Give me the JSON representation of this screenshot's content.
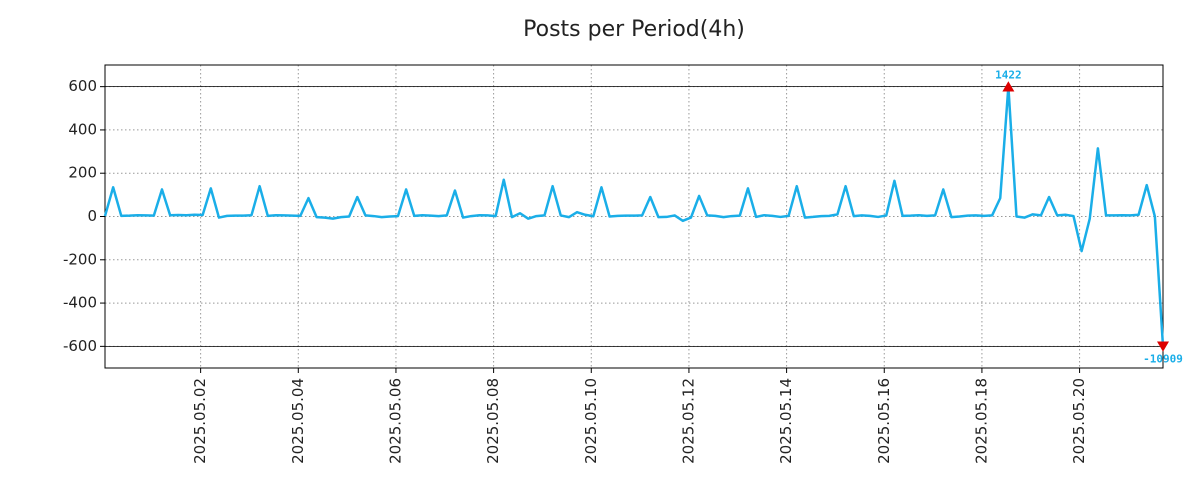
{
  "chart_data": {
    "type": "line",
    "title": "Posts per Period(4h)",
    "x": [
      "2025-04-30T01:00",
      "2025-04-30T05:00",
      "2025-04-30T09:00",
      "2025-04-30T13:00",
      "2025-04-30T17:00",
      "2025-04-30T21:00",
      "2025-05-01T01:00",
      "2025-05-01T05:00",
      "2025-05-01T09:00",
      "2025-05-01T13:00",
      "2025-05-01T17:00",
      "2025-05-01T21:00",
      "2025-05-02T01:00",
      "2025-05-02T05:00",
      "2025-05-02T09:00",
      "2025-05-02T13:00",
      "2025-05-02T17:00",
      "2025-05-02T21:00",
      "2025-05-03T01:00",
      "2025-05-03T05:00",
      "2025-05-03T09:00",
      "2025-05-03T13:00",
      "2025-05-03T17:00",
      "2025-05-03T21:00",
      "2025-05-04T01:00",
      "2025-05-04T05:00",
      "2025-05-04T09:00",
      "2025-05-04T13:00",
      "2025-05-04T17:00",
      "2025-05-04T21:00",
      "2025-05-05T01:00",
      "2025-05-05T05:00",
      "2025-05-05T09:00",
      "2025-05-05T13:00",
      "2025-05-05T17:00",
      "2025-05-05T21:00",
      "2025-05-06T01:00",
      "2025-05-06T05:00",
      "2025-05-06T09:00",
      "2025-05-06T13:00",
      "2025-05-06T17:00",
      "2025-05-06T21:00",
      "2025-05-07T01:00",
      "2025-05-07T05:00",
      "2025-05-07T09:00",
      "2025-05-07T13:00",
      "2025-05-07T17:00",
      "2025-05-07T21:00",
      "2025-05-08T01:00",
      "2025-05-08T05:00",
      "2025-05-08T09:00",
      "2025-05-08T13:00",
      "2025-05-08T17:00",
      "2025-05-08T21:00",
      "2025-05-09T01:00",
      "2025-05-09T05:00",
      "2025-05-09T09:00",
      "2025-05-09T13:00",
      "2025-05-09T17:00",
      "2025-05-09T21:00",
      "2025-05-10T01:00",
      "2025-05-10T05:00",
      "2025-05-10T09:00",
      "2025-05-10T13:00",
      "2025-05-10T17:00",
      "2025-05-10T21:00",
      "2025-05-11T01:00",
      "2025-05-11T05:00",
      "2025-05-11T09:00",
      "2025-05-11T13:00",
      "2025-05-11T17:00",
      "2025-05-11T21:00",
      "2025-05-12T01:00",
      "2025-05-12T05:00",
      "2025-05-12T09:00",
      "2025-05-12T13:00",
      "2025-05-12T17:00",
      "2025-05-12T21:00",
      "2025-05-13T01:00",
      "2025-05-13T05:00",
      "2025-05-13T09:00",
      "2025-05-13T13:00",
      "2025-05-13T17:00",
      "2025-05-13T21:00",
      "2025-05-14T01:00",
      "2025-05-14T05:00",
      "2025-05-14T09:00",
      "2025-05-14T13:00",
      "2025-05-14T17:00",
      "2025-05-14T21:00",
      "2025-05-15T01:00",
      "2025-05-15T05:00",
      "2025-05-15T09:00",
      "2025-05-15T13:00",
      "2025-05-15T17:00",
      "2025-05-15T21:00",
      "2025-05-16T01:00",
      "2025-05-16T05:00",
      "2025-05-16T09:00",
      "2025-05-16T13:00",
      "2025-05-16T17:00",
      "2025-05-16T21:00",
      "2025-05-17T01:00",
      "2025-05-17T05:00",
      "2025-05-17T09:00",
      "2025-05-17T13:00",
      "2025-05-17T17:00",
      "2025-05-17T21:00",
      "2025-05-18T01:00",
      "2025-05-18T05:00",
      "2025-05-18T09:00",
      "2025-05-18T13:00",
      "2025-05-18T17:00",
      "2025-05-18T21:00",
      "2025-05-19T01:00",
      "2025-05-19T05:00",
      "2025-05-19T09:00",
      "2025-05-19T13:00",
      "2025-05-19T17:00",
      "2025-05-19T21:00",
      "2025-05-20T01:00",
      "2025-05-20T05:00",
      "2025-05-20T09:00",
      "2025-05-20T13:00",
      "2025-05-20T17:00",
      "2025-05-20T21:00",
      "2025-05-21T01:00",
      "2025-05-21T05:00",
      "2025-05-21T09:00",
      "2025-05-21T13:00",
      "2025-05-21T17:00"
    ],
    "values": [
      2,
      135,
      3,
      4,
      6,
      5,
      4,
      125,
      6,
      7,
      6,
      8,
      7,
      130,
      -5,
      3,
      4,
      4,
      6,
      140,
      3,
      6,
      5,
      4,
      3,
      85,
      -3,
      -5,
      -10,
      -3,
      0,
      90,
      5,
      2,
      -3,
      0,
      2,
      125,
      3,
      6,
      4,
      2,
      5,
      120,
      -5,
      2,
      6,
      5,
      2,
      170,
      -3,
      15,
      -10,
      2,
      5,
      140,
      5,
      -3,
      20,
      8,
      1,
      135,
      0,
      3,
      4,
      4,
      5,
      90,
      -3,
      -2,
      5,
      -20,
      -5,
      95,
      5,
      3,
      -3,
      2,
      4,
      130,
      -2,
      6,
      3,
      -2,
      3,
      140,
      -5,
      -2,
      2,
      3,
      10,
      140,
      2,
      5,
      3,
      -2,
      5,
      165,
      3,
      4,
      6,
      3,
      5,
      125,
      -3,
      0,
      4,
      5,
      3,
      5,
      85,
      600,
      0,
      -5,
      10,
      5,
      90,
      5,
      8,
      2,
      -160,
      -10,
      315,
      5,
      5,
      6,
      5,
      8,
      145,
      0,
      -600
    ],
    "color": "#1aaee8",
    "xlim": [
      "2025-04-30T01:00",
      "2025-05-21T17:00"
    ],
    "xticks": [
      {
        "value": "2025-05-02T00:00",
        "label": "2025.05.02"
      },
      {
        "value": "2025-05-04T00:00",
        "label": "2025.05.04"
      },
      {
        "value": "2025-05-06T00:00",
        "label": "2025.05.06"
      },
      {
        "value": "2025-05-08T00:00",
        "label": "2025.05.08"
      },
      {
        "value": "2025-05-10T00:00",
        "label": "2025.05.10"
      },
      {
        "value": "2025-05-12T00:00",
        "label": "2025.05.12"
      },
      {
        "value": "2025-05-14T00:00",
        "label": "2025.05.14"
      },
      {
        "value": "2025-05-16T00:00",
        "label": "2025.05.16"
      },
      {
        "value": "2025-05-18T00:00",
        "label": "2025.05.18"
      },
      {
        "value": "2025-05-20T00:00",
        "label": "2025.05.20"
      }
    ],
    "ylim": [
      -700,
      700
    ],
    "yticks": [
      -600,
      -400,
      -200,
      0,
      200,
      400,
      600
    ],
    "grid": true,
    "hlines": [
      -600,
      600
    ],
    "annotations": [
      {
        "x": "2025-05-18T13:00",
        "y": 600,
        "label": "1422",
        "marker": "up",
        "marker_color": "#dd0000"
      },
      {
        "x": "2025-05-21T17:00",
        "y": -600,
        "label": "-10909",
        "marker": "down",
        "marker_color": "#dd0000"
      }
    ]
  }
}
